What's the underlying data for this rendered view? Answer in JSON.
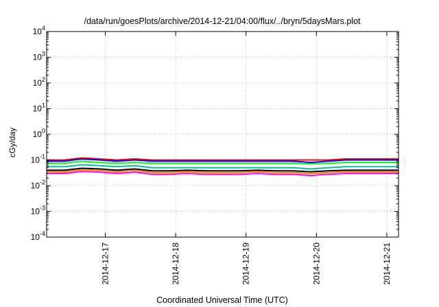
{
  "chart_data": {
    "type": "line",
    "title": "/data/run/goesPlots/archive/2014-12-21/04:00/flux/../bryn/5daysMars.plot",
    "xlabel": "Coordinated Universal Time (UTC)",
    "ylabel": "cGy/day",
    "yscale": "log",
    "ylim": [
      0.0001,
      10000
    ],
    "xlim": [
      "2014-12-16 04:00",
      "2014-12-21 04:00"
    ],
    "grid": true,
    "y_ticks": [
      {
        "base": "10",
        "exp": "-4"
      },
      {
        "base": "10",
        "exp": "-3"
      },
      {
        "base": "10",
        "exp": "-2"
      },
      {
        "base": "10",
        "exp": "-1"
      },
      {
        "base": "10",
        "exp": "0"
      },
      {
        "base": "10",
        "exp": "1"
      },
      {
        "base": "10",
        "exp": "2"
      },
      {
        "base": "10",
        "exp": "3"
      },
      {
        "base": "10",
        "exp": "4"
      }
    ],
    "x_ticks": [
      {
        "label": "2014-12-17",
        "value": "2014-12-17 00:00"
      },
      {
        "label": "2014-12-18",
        "value": "2014-12-18 00:00"
      },
      {
        "label": "2014-12-19",
        "value": "2014-12-19 00:00"
      },
      {
        "label": "2014-12-20",
        "value": "2014-12-20 00:00"
      },
      {
        "label": "2014-12-21",
        "value": "2014-12-21 00:00"
      }
    ],
    "x": [
      "2014-12-16 04:00",
      "2014-12-16 10:00",
      "2014-12-16 16:00",
      "2014-12-16 22:00",
      "2014-12-17 04:00",
      "2014-12-17 10:00",
      "2014-12-17 16:00",
      "2014-12-17 22:00",
      "2014-12-18 04:00",
      "2014-12-18 10:00",
      "2014-12-18 16:00",
      "2014-12-18 22:00",
      "2014-12-19 04:00",
      "2014-12-19 10:00",
      "2014-12-19 16:00",
      "2014-12-19 22:00",
      "2014-12-20 04:00",
      "2014-12-20 10:00",
      "2014-12-20 16:00",
      "2014-12-20 22:00",
      "2014-12-21 04:00"
    ],
    "series": [
      {
        "color": "#ff0000",
        "values": [
          0.1,
          0.1,
          0.12,
          0.11,
          0.1,
          0.11,
          0.1,
          0.1,
          0.1,
          0.1,
          0.1,
          0.1,
          0.1,
          0.1,
          0.1,
          0.1,
          0.1,
          0.11,
          0.11,
          0.11,
          0.11
        ]
      },
      {
        "color": "#0000ff",
        "values": [
          0.09,
          0.09,
          0.11,
          0.1,
          0.09,
          0.1,
          0.09,
          0.09,
          0.09,
          0.09,
          0.09,
          0.09,
          0.09,
          0.09,
          0.09,
          0.08,
          0.09,
          0.1,
          0.1,
          0.1,
          0.1
        ]
      },
      {
        "color": "#00ff00",
        "values": [
          0.075,
          0.075,
          0.09,
          0.08,
          0.075,
          0.08,
          0.075,
          0.075,
          0.075,
          0.075,
          0.075,
          0.075,
          0.075,
          0.075,
          0.075,
          0.07,
          0.075,
          0.08,
          0.08,
          0.08,
          0.08
        ]
      },
      {
        "color": "#00c0a0",
        "values": [
          0.055,
          0.055,
          0.065,
          0.06,
          0.055,
          0.06,
          0.05,
          0.05,
          0.05,
          0.05,
          0.05,
          0.05,
          0.05,
          0.05,
          0.05,
          0.045,
          0.05,
          0.055,
          0.055,
          0.055,
          0.055
        ]
      },
      {
        "color": "#000000",
        "values": [
          0.04,
          0.04,
          0.048,
          0.045,
          0.04,
          0.045,
          0.038,
          0.038,
          0.04,
          0.038,
          0.038,
          0.038,
          0.04,
          0.038,
          0.038,
          0.035,
          0.038,
          0.04,
          0.04,
          0.04,
          0.04
        ]
      },
      {
        "color": "#ff8000",
        "values": [
          0.035,
          0.035,
          0.042,
          0.04,
          0.035,
          0.04,
          0.033,
          0.033,
          0.035,
          0.033,
          0.033,
          0.033,
          0.035,
          0.033,
          0.033,
          0.03,
          0.033,
          0.035,
          0.035,
          0.035,
          0.035
        ]
      },
      {
        "color": "#ff00ff",
        "values": [
          0.03,
          0.03,
          0.036,
          0.034,
          0.03,
          0.034,
          0.028,
          0.028,
          0.03,
          0.028,
          0.028,
          0.028,
          0.03,
          0.028,
          0.028,
          0.025,
          0.028,
          0.03,
          0.03,
          0.03,
          0.03
        ]
      }
    ]
  }
}
